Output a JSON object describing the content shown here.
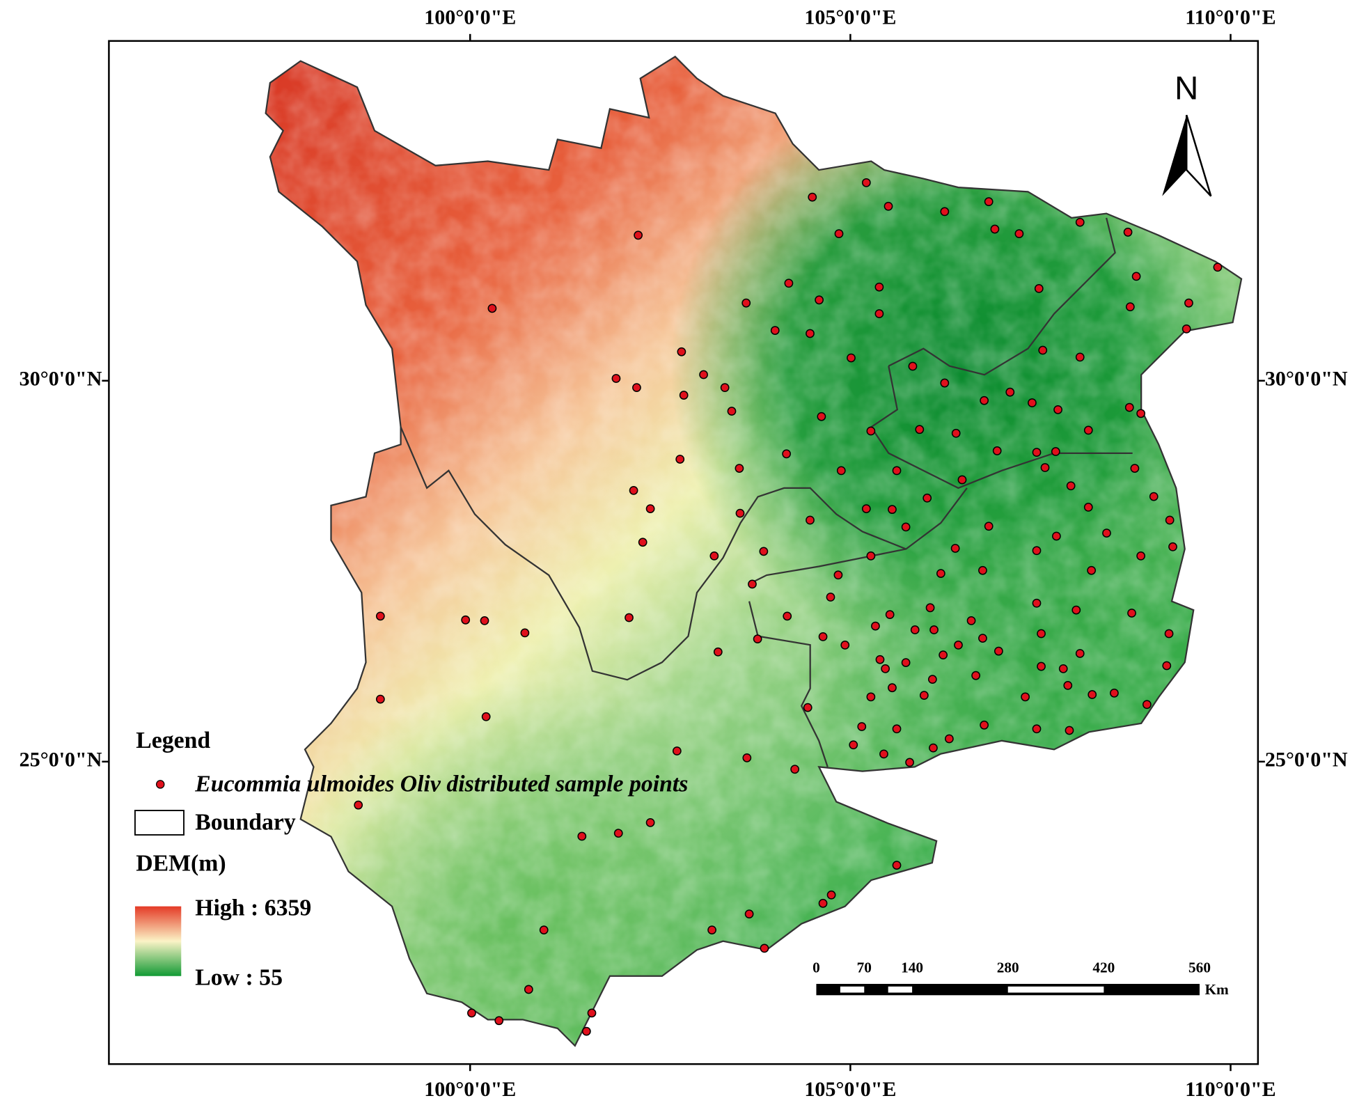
{
  "map": {
    "xlim": [
      95.25,
      110.36
    ],
    "ylim": [
      21.03,
      34.46
    ],
    "xticks": [
      {
        "value": 100,
        "label": "100°0'0\"E"
      },
      {
        "value": 105,
        "label": "105°0'0\"E"
      },
      {
        "value": 110,
        "label": "110°0'0\"E"
      }
    ],
    "yticks": [
      {
        "value": 30,
        "label": "30°0'0\"N"
      },
      {
        "value": 25,
        "label": "25°0'0\"N"
      }
    ],
    "north": "N",
    "legend": {
      "title": "Legend",
      "points": "Eucommia ulmoides Oliv distributed sample points",
      "boundary": "Boundary",
      "dem_title": "DEM(m)",
      "high": "High : 6359",
      "low": "Low : 55"
    },
    "scale_bar": {
      "ticks": [
        0,
        70,
        140,
        280,
        420,
        560
      ],
      "unit": "Km"
    },
    "point_color": "#e0101c",
    "points": [
      [
        104.5,
        32.41
      ],
      [
        105.21,
        32.6
      ],
      [
        105.5,
        32.29
      ],
      [
        106.24,
        32.22
      ],
      [
        106.82,
        32.35
      ],
      [
        106.9,
        31.99
      ],
      [
        107.22,
        31.93
      ],
      [
        104.85,
        31.93
      ],
      [
        102.21,
        31.91
      ],
      [
        100.29,
        30.95
      ],
      [
        108.02,
        32.08
      ],
      [
        108.65,
        31.95
      ],
      [
        109.83,
        31.49
      ],
      [
        108.76,
        31.37
      ],
      [
        107.48,
        31.21
      ],
      [
        105.38,
        31.23
      ],
      [
        104.19,
        31.28
      ],
      [
        104.59,
        31.06
      ],
      [
        103.63,
        31.02
      ],
      [
        104.01,
        30.66
      ],
      [
        104.47,
        30.62
      ],
      [
        105.01,
        30.3
      ],
      [
        105.38,
        30.88
      ],
      [
        107.53,
        30.4
      ],
      [
        108.02,
        30.31
      ],
      [
        102.78,
        30.38
      ],
      [
        101.92,
        30.03
      ],
      [
        102.19,
        29.91
      ],
      [
        103.07,
        30.08
      ],
      [
        103.35,
        29.91
      ],
      [
        102.81,
        29.81
      ],
      [
        103.44,
        29.6
      ],
      [
        105.82,
        30.19
      ],
      [
        106.24,
        29.97
      ],
      [
        106.76,
        29.74
      ],
      [
        107.1,
        29.85
      ],
      [
        107.39,
        29.71
      ],
      [
        107.73,
        29.62
      ],
      [
        108.67,
        29.65
      ],
      [
        108.82,
        29.57
      ],
      [
        104.62,
        29.53
      ],
      [
        105.27,
        29.34
      ],
      [
        105.91,
        29.36
      ],
      [
        106.39,
        29.31
      ],
      [
        106.93,
        29.08
      ],
      [
        107.45,
        29.06
      ],
      [
        107.7,
        29.07
      ],
      [
        108.13,
        29.35
      ],
      [
        104.16,
        29.04
      ],
      [
        104.88,
        28.82
      ],
      [
        105.61,
        28.82
      ],
      [
        106.47,
        28.7
      ],
      [
        107.56,
        28.86
      ],
      [
        108.74,
        28.85
      ],
      [
        103.54,
        28.85
      ],
      [
        102.76,
        28.97
      ],
      [
        102.37,
        28.32
      ],
      [
        102.15,
        28.56
      ],
      [
        103.55,
        28.26
      ],
      [
        105.21,
        28.32
      ],
      [
        105.55,
        28.31
      ],
      [
        106.01,
        28.46
      ],
      [
        106.82,
        28.09
      ],
      [
        107.9,
        28.62
      ],
      [
        108.13,
        28.34
      ],
      [
        108.99,
        28.48
      ],
      [
        109.2,
        28.17
      ],
      [
        104.47,
        28.17
      ],
      [
        105.73,
        28.08
      ],
      [
        106.38,
        27.8
      ],
      [
        107.45,
        27.77
      ],
      [
        107.71,
        27.96
      ],
      [
        108.37,
        28.0
      ],
      [
        108.82,
        27.7
      ],
      [
        109.24,
        27.82
      ],
      [
        102.27,
        27.88
      ],
      [
        103.21,
        27.7
      ],
      [
        103.86,
        27.76
      ],
      [
        105.27,
        27.7
      ],
      [
        106.19,
        27.47
      ],
      [
        106.74,
        27.51
      ],
      [
        108.17,
        27.51
      ],
      [
        104.84,
        27.45
      ],
      [
        103.71,
        27.33
      ],
      [
        104.74,
        27.16
      ],
      [
        107.45,
        27.08
      ],
      [
        107.97,
        26.99
      ],
      [
        108.7,
        26.95
      ],
      [
        106.05,
        27.02
      ],
      [
        106.59,
        26.85
      ],
      [
        105.52,
        26.93
      ],
      [
        104.17,
        26.91
      ],
      [
        102.09,
        26.89
      ],
      [
        99.94,
        26.86
      ],
      [
        100.19,
        26.85
      ],
      [
        100.72,
        26.69
      ],
      [
        98.82,
        26.91
      ],
      [
        105.33,
        26.78
      ],
      [
        105.85,
        26.73
      ],
      [
        106.1,
        26.73
      ],
      [
        106.74,
        26.62
      ],
      [
        107.51,
        26.68
      ],
      [
        109.19,
        26.68
      ],
      [
        103.78,
        26.61
      ],
      [
        104.64,
        26.64
      ],
      [
        104.93,
        26.53
      ],
      [
        106.42,
        26.53
      ],
      [
        106.95,
        26.45
      ],
      [
        108.02,
        26.42
      ],
      [
        103.26,
        26.44
      ],
      [
        105.39,
        26.34
      ],
      [
        105.73,
        26.3
      ],
      [
        106.22,
        26.4
      ],
      [
        109.16,
        26.26
      ],
      [
        105.46,
        26.22
      ],
      [
        106.08,
        26.08
      ],
      [
        106.65,
        26.13
      ],
      [
        107.51,
        26.25
      ],
      [
        107.8,
        26.22
      ],
      [
        105.55,
        25.97
      ],
      [
        105.97,
        25.87
      ],
      [
        107.3,
        25.85
      ],
      [
        107.86,
        26.0
      ],
      [
        108.18,
        25.88
      ],
      [
        108.47,
        25.9
      ],
      [
        108.9,
        25.75
      ],
      [
        105.27,
        25.85
      ],
      [
        98.82,
        25.82
      ],
      [
        100.21,
        25.59
      ],
      [
        104.44,
        25.71
      ],
      [
        105.15,
        25.46
      ],
      [
        105.61,
        25.43
      ],
      [
        106.76,
        25.48
      ],
      [
        107.45,
        25.43
      ],
      [
        107.88,
        25.41
      ],
      [
        106.3,
        25.3
      ],
      [
        106.09,
        25.18
      ],
      [
        105.04,
        25.22
      ],
      [
        105.44,
        25.1
      ],
      [
        105.78,
        24.99
      ],
      [
        102.72,
        25.14
      ],
      [
        103.64,
        25.05
      ],
      [
        104.27,
        24.9
      ],
      [
        98.53,
        24.43
      ],
      [
        102.37,
        24.2
      ],
      [
        101.47,
        24.02
      ],
      [
        101.95,
        24.06
      ],
      [
        105.61,
        23.64
      ],
      [
        104.75,
        23.25
      ],
      [
        104.64,
        23.14
      ],
      [
        103.67,
        23.0
      ],
      [
        100.97,
        22.79
      ],
      [
        103.18,
        22.79
      ],
      [
        103.87,
        22.55
      ],
      [
        100.77,
        22.01
      ],
      [
        100.02,
        21.7
      ],
      [
        100.38,
        21.6
      ],
      [
        101.6,
        21.7
      ],
      [
        101.53,
        21.46
      ],
      [
        109.45,
        31.02
      ],
      [
        109.42,
        30.68
      ],
      [
        108.68,
        30.97
      ]
    ]
  }
}
